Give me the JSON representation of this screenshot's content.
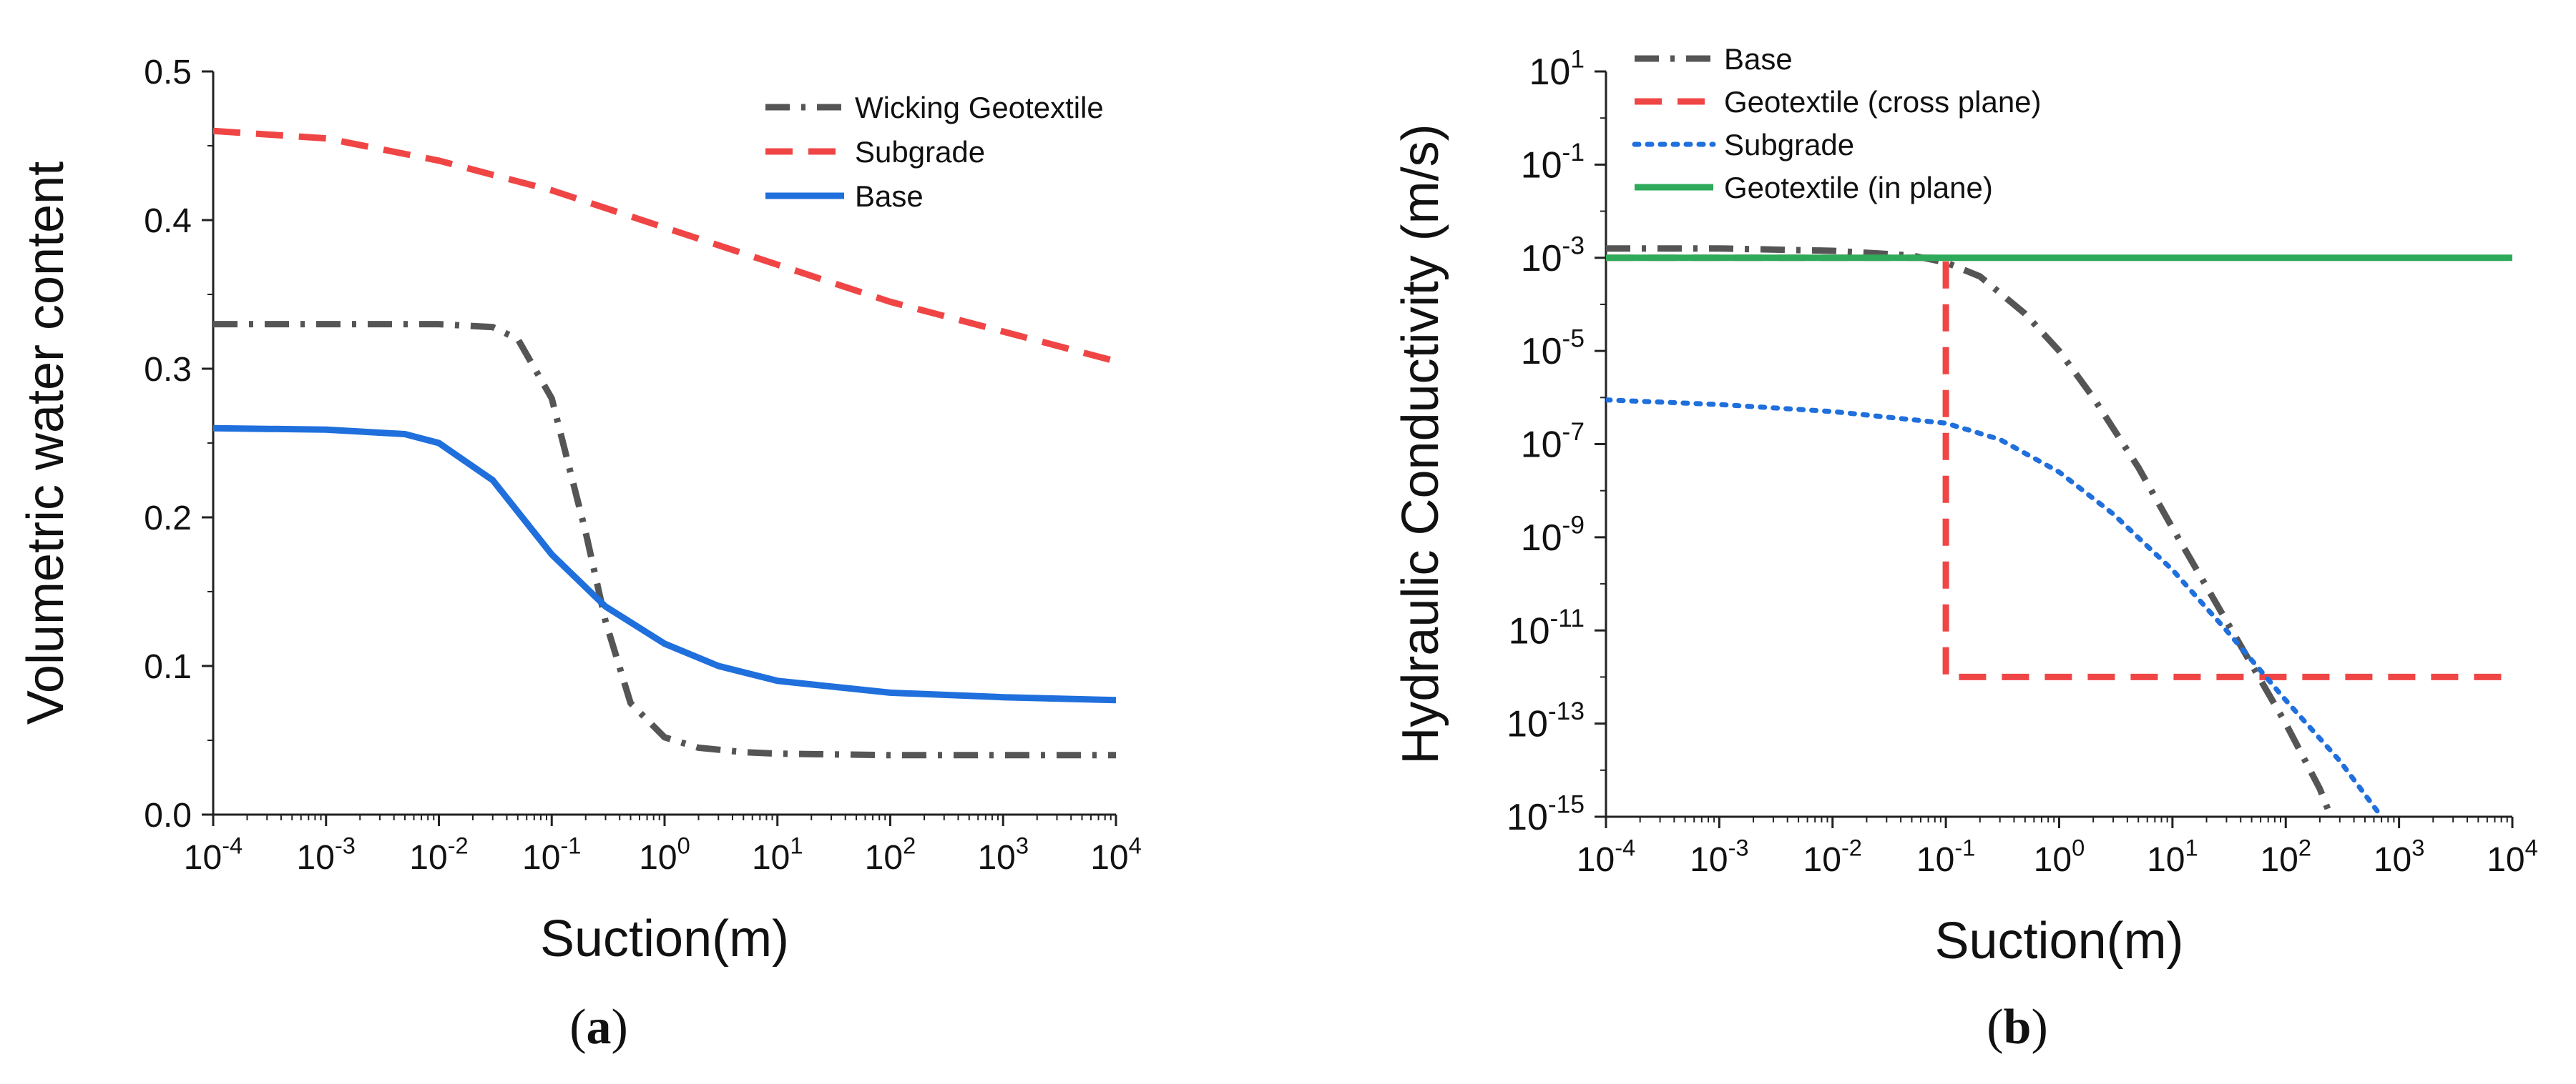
{
  "chart_data": [
    {
      "type": "line",
      "panel_label": "a",
      "xscale": "log",
      "xlim": [
        0.0001,
        10000
      ],
      "ylim": [
        0,
        0.5
      ],
      "xlabel": "Suction(m)",
      "ylabel": "Volumetric water content",
      "x_ticks": [
        {
          "base": "10",
          "exp": "-4"
        },
        {
          "base": "10",
          "exp": "-3"
        },
        {
          "base": "10",
          "exp": "-2"
        },
        {
          "base": "10",
          "exp": "-1"
        },
        {
          "base": "10",
          "exp": "0"
        },
        {
          "base": "10",
          "exp": "1"
        },
        {
          "base": "10",
          "exp": "2"
        },
        {
          "base": "10",
          "exp": "3"
        },
        {
          "base": "10",
          "exp": "4"
        }
      ],
      "y_ticks": [
        "0.0",
        "0.1",
        "0.2",
        "0.3",
        "0.4",
        "0.5"
      ],
      "legend_position": "top-right",
      "series": [
        {
          "name": "Wicking Geotextile",
          "color": "#555555",
          "style": "dashdot",
          "x": [
            0.0001,
            0.001,
            0.01,
            0.03,
            0.05,
            0.1,
            0.2,
            0.3,
            0.5,
            1,
            2,
            5,
            10,
            100,
            1000,
            10000
          ],
          "y": [
            0.33,
            0.33,
            0.33,
            0.328,
            0.32,
            0.28,
            0.19,
            0.13,
            0.075,
            0.052,
            0.045,
            0.042,
            0.041,
            0.04,
            0.04,
            0.04
          ]
        },
        {
          "name": "Subgrade",
          "color": "#f04545",
          "style": "dashed",
          "x": [
            0.0001,
            0.001,
            0.01,
            0.1,
            1,
            10,
            100,
            1000,
            10000
          ],
          "y": [
            0.46,
            0.455,
            0.44,
            0.42,
            0.395,
            0.37,
            0.345,
            0.325,
            0.305
          ]
        },
        {
          "name": "Base",
          "color": "#1f6fdc",
          "style": "solid",
          "x": [
            0.0001,
            0.001,
            0.005,
            0.01,
            0.03,
            0.1,
            0.3,
            1,
            3,
            10,
            100,
            1000,
            10000
          ],
          "y": [
            0.26,
            0.259,
            0.256,
            0.25,
            0.225,
            0.175,
            0.14,
            0.115,
            0.1,
            0.09,
            0.082,
            0.079,
            0.077
          ]
        }
      ]
    },
    {
      "type": "line",
      "panel_label": "b",
      "xscale": "log",
      "yscale": "log",
      "xlim": [
        0.0001,
        10000
      ],
      "ylim_exp": [
        -15,
        1
      ],
      "xlabel": "Suction(m)",
      "ylabel": "Hydraulic Conductivity (m/s)",
      "x_ticks": [
        {
          "base": "10",
          "exp": "-4"
        },
        {
          "base": "10",
          "exp": "-3"
        },
        {
          "base": "10",
          "exp": "-2"
        },
        {
          "base": "10",
          "exp": "-1"
        },
        {
          "base": "10",
          "exp": "0"
        },
        {
          "base": "10",
          "exp": "1"
        },
        {
          "base": "10",
          "exp": "2"
        },
        {
          "base": "10",
          "exp": "3"
        },
        {
          "base": "10",
          "exp": "4"
        }
      ],
      "y_ticks": [
        {
          "base": "10",
          "exp": "1"
        },
        {
          "base": "10",
          "exp": "-1"
        },
        {
          "base": "10",
          "exp": "-3"
        },
        {
          "base": "10",
          "exp": "-5"
        },
        {
          "base": "10",
          "exp": "-7"
        },
        {
          "base": "10",
          "exp": "-9"
        },
        {
          "base": "10",
          "exp": "-11"
        },
        {
          "base": "10",
          "exp": "-13"
        },
        {
          "base": "10",
          "exp": "-15"
        }
      ],
      "legend_position": "top-right",
      "series": [
        {
          "name": "Base",
          "color": "#555555",
          "style": "dashdot",
          "x": [
            0.0001,
            0.001,
            0.01,
            0.05,
            0.1,
            0.2,
            0.5,
            1,
            2,
            5,
            10,
            30,
            100,
            200,
            250
          ],
          "y_exp": [
            -2.8,
            -2.8,
            -2.85,
            -2.95,
            -3.1,
            -3.4,
            -4.2,
            -5.0,
            -6.0,
            -7.5,
            -8.8,
            -10.8,
            -13.0,
            -14.4,
            -15
          ]
        },
        {
          "name": "Geotextile (cross plane)",
          "color": "#f04545",
          "style": "dashed",
          "x": [
            0.0001,
            0.1,
            0.1,
            10000
          ],
          "y_exp": [
            -3,
            -3,
            -12,
            -12
          ]
        },
        {
          "name": "Subgrade",
          "color": "#1f6fdc",
          "style": "dotted",
          "x": [
            0.0001,
            0.001,
            0.01,
            0.1,
            0.3,
            1,
            3,
            10,
            30,
            100,
            300,
            700
          ],
          "y_exp": [
            -6.05,
            -6.15,
            -6.3,
            -6.55,
            -6.9,
            -7.6,
            -8.5,
            -9.7,
            -11,
            -12.5,
            -13.8,
            -15
          ]
        },
        {
          "name": "Geotextile (in plane)",
          "color": "#2eaa5a",
          "style": "solid",
          "x": [
            0.0001,
            10000
          ],
          "y_exp": [
            -3,
            -3
          ]
        }
      ]
    }
  ]
}
